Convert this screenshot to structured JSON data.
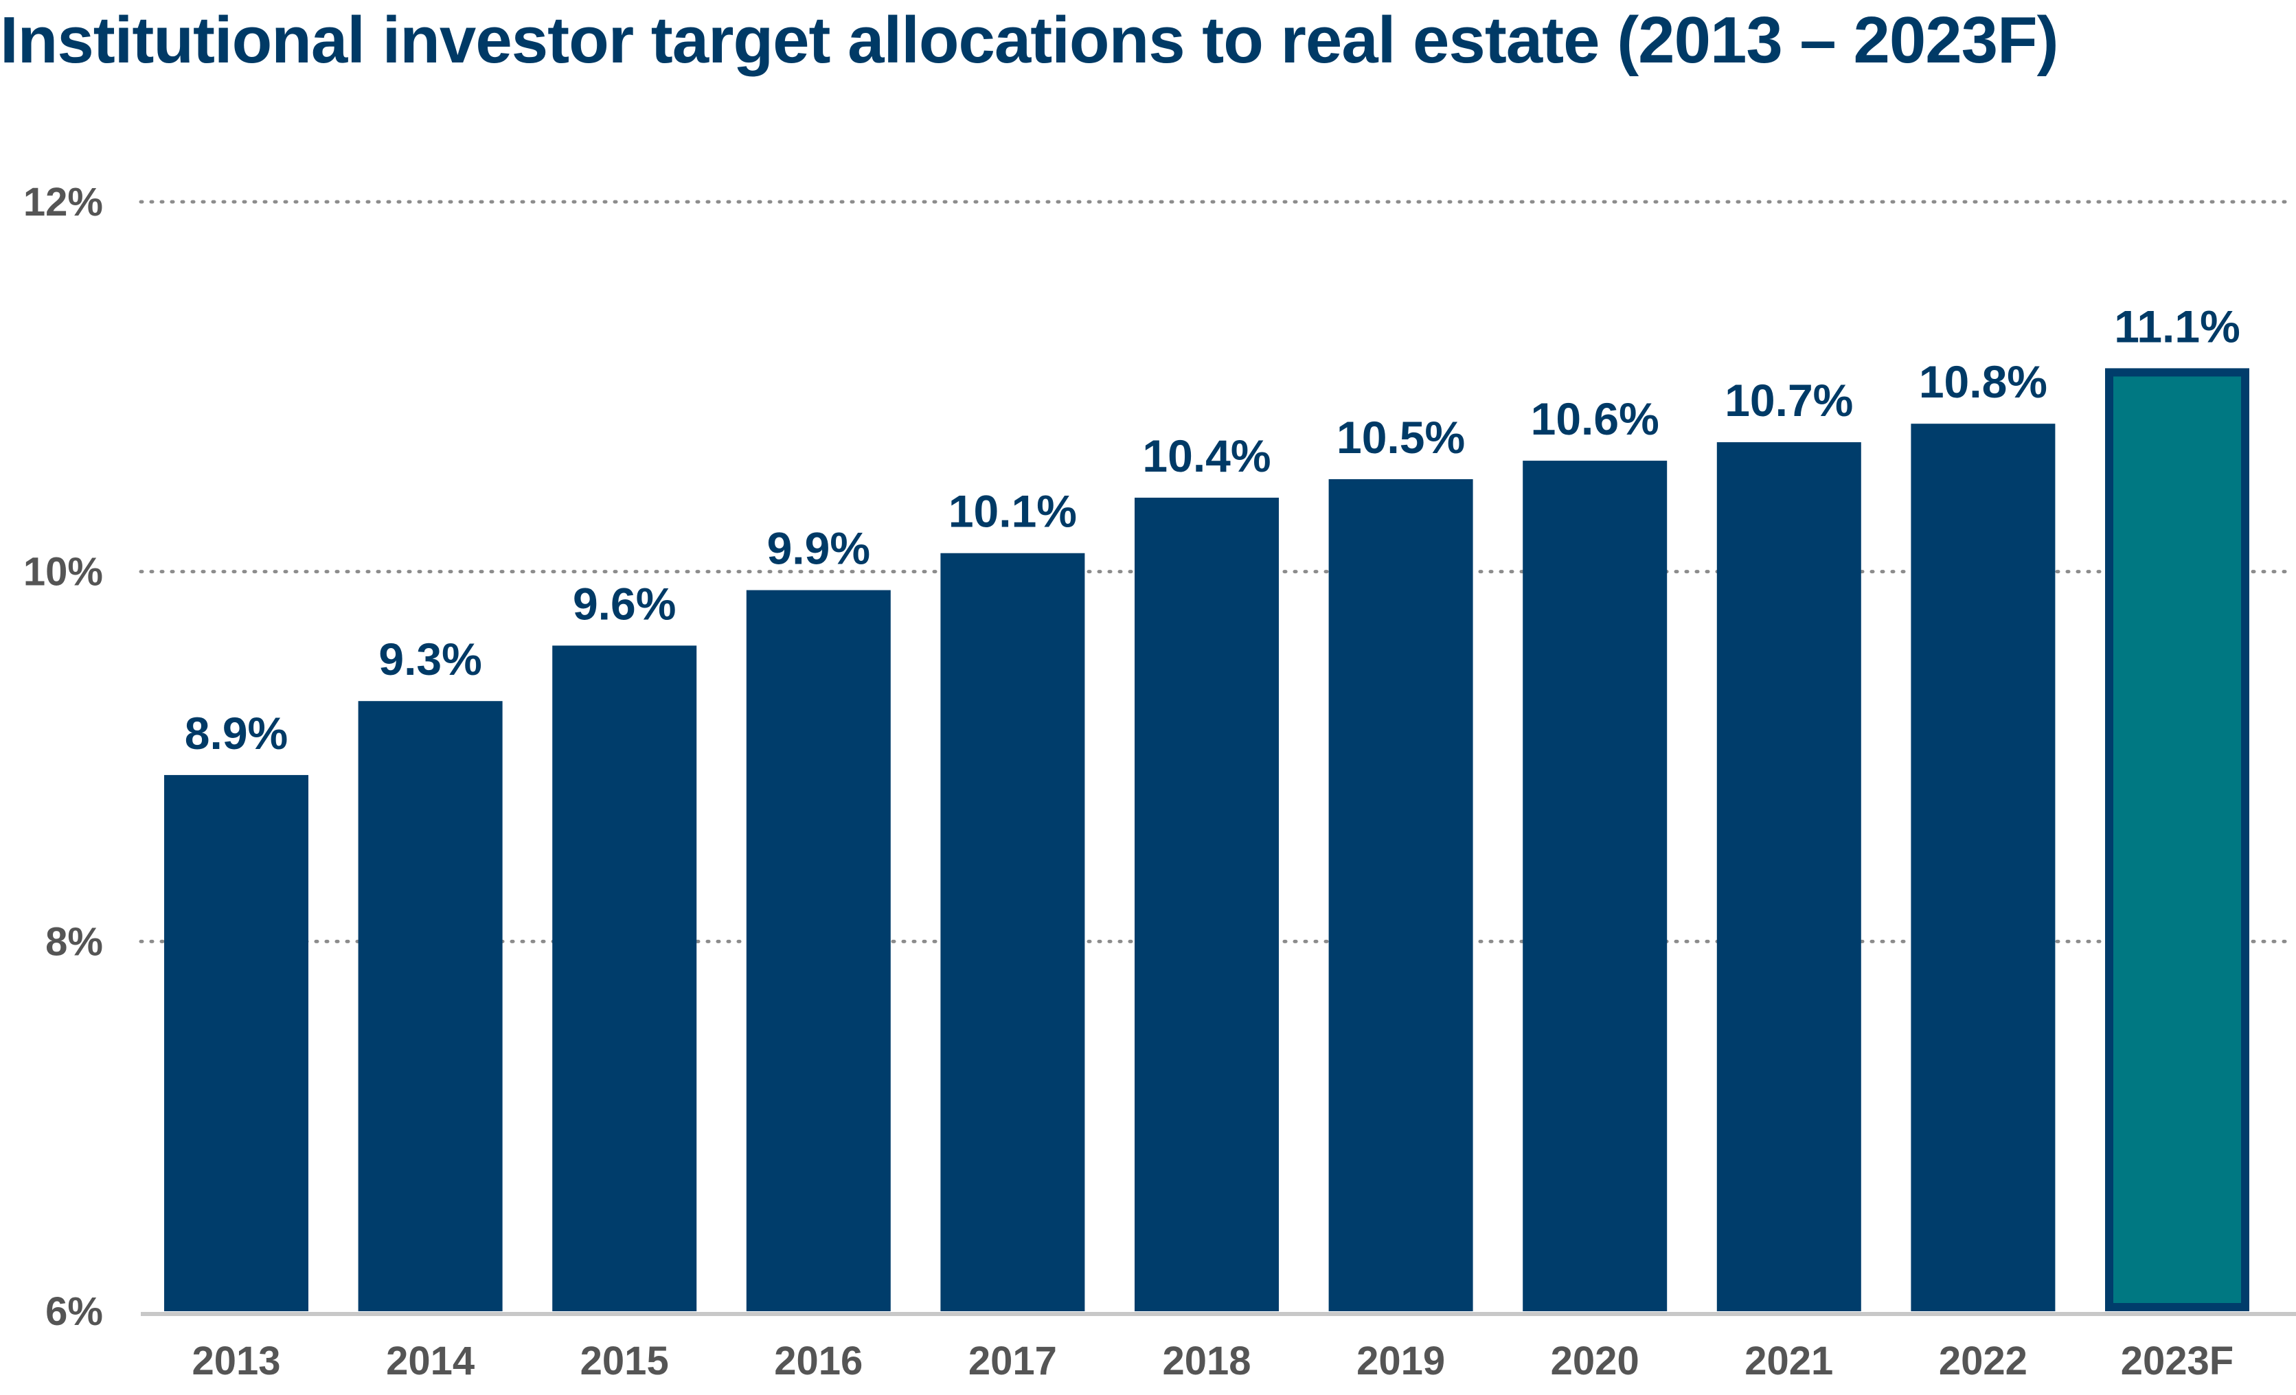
{
  "chart_data": {
    "type": "bar",
    "title": "Institutional investor target allocations to real estate (2013 – 2023F)",
    "xlabel": "",
    "ylabel": "",
    "categories": [
      "2013",
      "2014",
      "2015",
      "2016",
      "2017",
      "2018",
      "2019",
      "2020",
      "2021",
      "2022",
      "2023F"
    ],
    "values": [
      8.9,
      9.3,
      9.6,
      9.9,
      10.1,
      10.4,
      10.5,
      10.6,
      10.7,
      10.8,
      11.1
    ],
    "value_labels": [
      "8.9%",
      "9.3%",
      "9.6%",
      "9.9%",
      "10.1%",
      "10.4%",
      "10.5%",
      "10.6%",
      "10.7%",
      "10.8%",
      "11.1%"
    ],
    "ylim": [
      6,
      12
    ],
    "yticks": [
      6,
      8,
      10,
      12
    ],
    "ytick_labels": [
      "6%",
      "8%",
      "10%",
      "12%"
    ],
    "grid": "horizontal dotted",
    "legend": "none",
    "colors": {
      "bar": "#003d6b",
      "forecast_fill": "#007882",
      "forecast_border": "#003d6b",
      "label": "#003a66",
      "tick": "#555555",
      "grid": "#8c8c8c",
      "axis": "#c8c8c8"
    },
    "highlighted_category": "2023F"
  }
}
